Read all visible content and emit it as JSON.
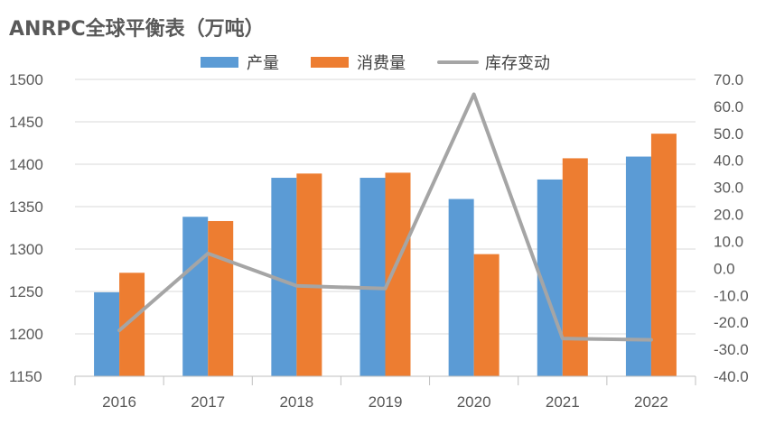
{
  "chart_data": {
    "type": "bar",
    "title": "ANRPC全球平衡表（万吨）",
    "categories": [
      "2016",
      "2017",
      "2018",
      "2019",
      "2020",
      "2021",
      "2022"
    ],
    "series": [
      {
        "name": "产量",
        "type": "bar",
        "axis": "left",
        "color": "#5B9BD5",
        "values": [
          1249,
          1338,
          1384,
          1384,
          1359,
          1382,
          1409
        ]
      },
      {
        "name": "消费量",
        "type": "bar",
        "axis": "left",
        "color": "#ED7D31",
        "values": [
          1272,
          1333,
          1389,
          1390,
          1294,
          1407,
          1436
        ]
      },
      {
        "name": "库存变动",
        "type": "line",
        "axis": "right",
        "color": "#A5A5A5",
        "values": [
          -23,
          5.5,
          -6.5,
          -7.5,
          64.5,
          -26,
          -26.5
        ]
      }
    ],
    "left_axis": {
      "min": 1150,
      "max": 1500,
      "step": 50,
      "ticks": [
        "1150",
        "1200",
        "1250",
        "1300",
        "1350",
        "1400",
        "1450",
        "1500"
      ]
    },
    "right_axis": {
      "min": -40,
      "max": 70,
      "step": 10,
      "ticks": [
        "-40.0",
        "-30.0",
        "-20.0",
        "-10.0",
        "0.0",
        "10.0",
        "20.0",
        "30.0",
        "40.0",
        "50.0",
        "60.0",
        "70.0"
      ]
    },
    "grid": true,
    "legend_position": "top"
  }
}
